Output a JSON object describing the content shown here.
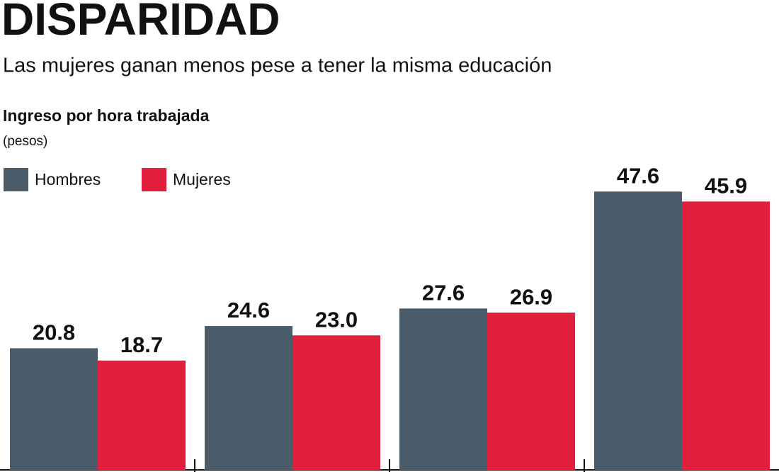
{
  "chart_data": {
    "type": "bar",
    "title": "DISPARIDAD",
    "subtitle": "Las mujeres ganan menos pese a tener la misma educación",
    "y_label": "Ingreso por hora trabajada",
    "y_unit": "(pesos)",
    "categories": [
      null,
      null,
      null,
      null
    ],
    "series": [
      {
        "name": "Hombres",
        "color": "#4a5b69",
        "values": [
          20.8,
          24.6,
          27.6,
          47.6
        ],
        "value_labels": [
          "20.8",
          "24.6",
          "27.6",
          "47.6"
        ]
      },
      {
        "name": "Mujeres",
        "color": "#e21f3d",
        "values": [
          18.7,
          23,
          26.9,
          45.9
        ],
        "value_labels": [
          "18.7",
          "23.0",
          "26.9",
          "45.9"
        ]
      }
    ],
    "legend": "top-left"
  }
}
